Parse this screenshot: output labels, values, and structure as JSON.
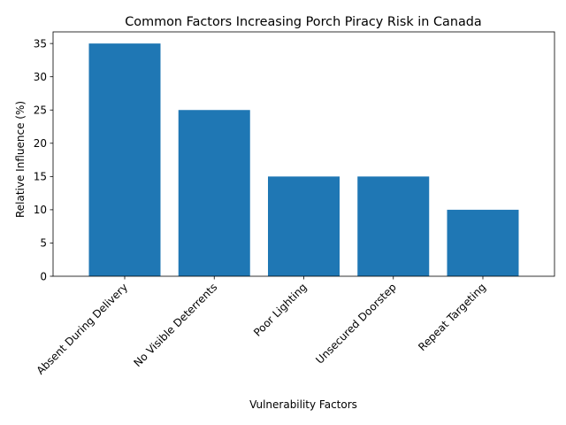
{
  "chart_data": {
    "type": "bar",
    "title": "Common Factors Increasing Porch Piracy Risk in Canada",
    "xlabel": "Vulnerability Factors",
    "ylabel": "Relative Influence (%)",
    "categories": [
      "Absent During Delivery",
      "No Visible Deterrents",
      "Poor Lighting",
      "Unsecured Doorstep",
      "Repeat Targeting"
    ],
    "values": [
      35,
      25,
      15,
      15,
      10
    ],
    "ylim": [
      0,
      36.75
    ],
    "yticks": [
      0,
      5,
      10,
      15,
      20,
      25,
      30,
      35
    ],
    "bar_color": "#1f77b4",
    "grid": false,
    "legend": "none"
  }
}
